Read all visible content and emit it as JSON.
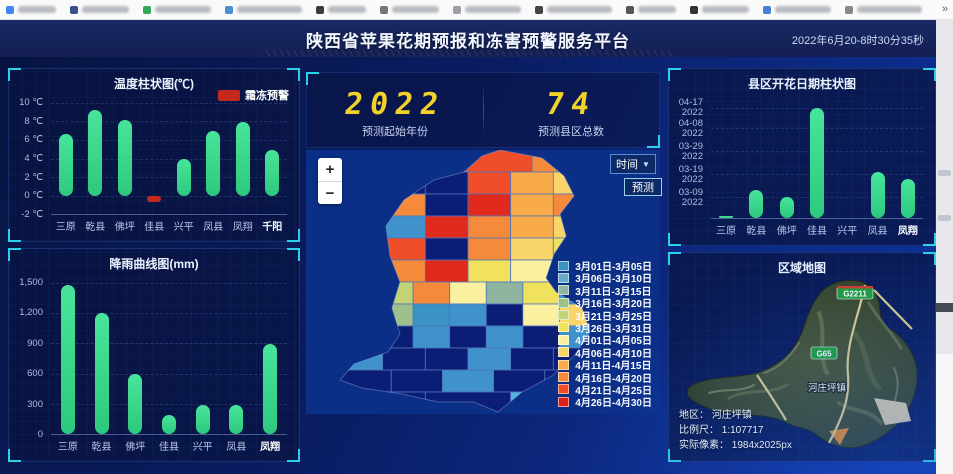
{
  "browser": {
    "overflow_chevron": "»",
    "bookmarks": [
      {
        "color": "#4285f4"
      },
      {
        "color": "#38508c"
      },
      {
        "color": "#34a853"
      },
      {
        "color": "#4a90d9"
      },
      {
        "color": "#3b3b3b"
      },
      {
        "color": "#777777"
      },
      {
        "color": "#9aa0a6"
      },
      {
        "color": "#444444"
      },
      {
        "color": "#555555"
      },
      {
        "color": "#333333"
      },
      {
        "color": "#4a7fd6"
      },
      {
        "color": "#888888"
      }
    ]
  },
  "header": {
    "title": "陕西省苹果花期预报和冻害预警服务平台",
    "timestamp": "2022年6月20-8时30分35秒"
  },
  "stats": {
    "year_value": "2022",
    "year_label": "预测起始年份",
    "county_value": "74",
    "county_label": "预测县区总数"
  },
  "map_panel": {
    "zoom_in": "+",
    "zoom_out": "−",
    "time_label": "时间",
    "predict_label": "预测",
    "legend": [
      {
        "label": "3月01日-3月05日",
        "color": "#3a93c4"
      },
      {
        "label": "3月06日-3月10日",
        "color": "#68aac9"
      },
      {
        "label": "3月11日-3月15日",
        "color": "#8fb49f"
      },
      {
        "label": "3月16日-3月20日",
        "color": "#9ec08a"
      },
      {
        "label": "3月21日-3月25日",
        "color": "#c2d275"
      },
      {
        "label": "3月26日-3月31日",
        "color": "#f0e25c"
      },
      {
        "label": "4月01日-4月05日",
        "color": "#faf0a0"
      },
      {
        "label": "4月06日-4月10日",
        "color": "#f9d468"
      },
      {
        "label": "4月11日-4月15日",
        "color": "#f9ab49"
      },
      {
        "label": "4月16日-4月20日",
        "color": "#f58b3a"
      },
      {
        "label": "4月21日-4月25日",
        "color": "#ef4e28"
      },
      {
        "label": "4月26日-4月30日",
        "color": "#dc1f1b"
      }
    ],
    "palette": {
      "N": "#0b1d74",
      "R": "#ef4e28",
      "DR": "#e02a1e",
      "O": "#f58b3a",
      "LO": "#f9ab49",
      "PE": "#f9d468",
      "Y": "#f0e25c",
      "PY": "#faf0a0",
      "G": "#9ec08a",
      "LG": "#c2d275",
      "GG": "#8fb49f",
      "MB": "#3f92cc",
      "LB": "#52b4dc",
      "TB": "#3a93c4"
    },
    "rows": [
      [
        "N",
        "R",
        "R",
        "O"
      ],
      [
        "O",
        "N",
        "N",
        "R",
        "LO",
        "PE"
      ],
      [
        "O",
        "O",
        "N",
        "DR",
        "LO",
        "O"
      ],
      [
        "N",
        "MB",
        "DR",
        "O",
        "LO",
        "PE"
      ],
      [
        "O",
        "R",
        "N",
        "O",
        "PE",
        "Y"
      ],
      [
        "LO",
        "O",
        "DR",
        "Y",
        "PY",
        "G"
      ],
      [
        "PY",
        "LG",
        "O",
        "PY",
        "GG",
        "Y",
        "MB"
      ],
      [
        "MB",
        "G",
        "TB",
        "MB",
        "N",
        "PY",
        "PE"
      ],
      [
        "G",
        "N",
        "MB",
        "N",
        "MB",
        "N",
        "MB"
      ],
      [
        "MB",
        "N",
        "N",
        "MB",
        "N",
        "N"
      ],
      [
        "N",
        "N",
        "MB",
        "N",
        "N"
      ],
      [
        "N",
        "N",
        "LB"
      ]
    ]
  },
  "region_panel": {
    "title": "区域地图",
    "badge_top": "G2211",
    "badge_mid": "G65",
    "place": "河庄坪镇",
    "info_area": "地区： 河庄坪镇",
    "info_scale": "比例尺： 1:107717",
    "info_pixels": "实际像素： 1984x2025px"
  },
  "chart_data": [
    {
      "id": "temperature",
      "type": "bar",
      "title": "温度柱状图(℃)",
      "legend": {
        "label": "霜冻预警",
        "color": "#c5281c"
      },
      "categories": [
        "三原",
        "乾县",
        "佛坪",
        "佳县",
        "兴平",
        "凤县",
        "凤翔",
        "千阳"
      ],
      "values": [
        6.6,
        9.3,
        8.2,
        -0.7,
        4.0,
        7.0,
        8.0,
        4.9
      ],
      "warn_indices": [
        3
      ],
      "warn_color": "#c5281c",
      "bar_color": "#35d98c",
      "ylim": [
        -2,
        10
      ],
      "ticks": [
        {
          "value": 10,
          "label": "10 ℃"
        },
        {
          "value": 8,
          "label": "8 ℃"
        },
        {
          "value": 6,
          "label": "6 ℃"
        },
        {
          "value": 4,
          "label": "4 ℃"
        },
        {
          "value": 2,
          "label": "2 ℃"
        },
        {
          "value": 0,
          "label": "0 ℃"
        },
        {
          "value": -2,
          "label": "-2 ℃"
        }
      ],
      "highlight_last": true,
      "grid": true,
      "legend_position": "top-right"
    },
    {
      "id": "rainfall",
      "type": "bar",
      "title": "降雨曲线图(mm)",
      "categories": [
        "三原",
        "乾县",
        "佛坪",
        "佳县",
        "兴平",
        "凤县",
        "凤翔"
      ],
      "values": [
        1480,
        1200,
        600,
        190,
        290,
        290,
        890
      ],
      "bar_color": "#35d98c",
      "ylim": [
        0,
        1500
      ],
      "ticks": [
        {
          "value": 1500,
          "label": "1,500"
        },
        {
          "value": 1200,
          "label": "1,200"
        },
        {
          "value": 900,
          "label": "900"
        },
        {
          "value": 600,
          "label": "600"
        },
        {
          "value": 300,
          "label": "300"
        },
        {
          "value": 0,
          "label": "0"
        }
      ],
      "highlight_last": true,
      "grid": true
    },
    {
      "id": "flowering",
      "type": "bar",
      "title": "县区开花日期柱状图",
      "categories": [
        "三原",
        "乾县",
        "佛坪",
        "佳县",
        "兴平",
        "凤县",
        "凤翔"
      ],
      "values": [
        1,
        12,
        9,
        48,
        0,
        20,
        17
      ],
      "value_unit": "days-from-02-28",
      "bar_color": "#35d98c",
      "ylim": [
        0,
        50
      ],
      "ticks": [
        {
          "value": 48,
          "label": "04-17",
          "label2": "2022"
        },
        {
          "value": 39,
          "label": "04-08",
          "label2": "2022"
        },
        {
          "value": 29,
          "label": "03-29",
          "label2": "2022"
        },
        {
          "value": 19,
          "label": "03-19",
          "label2": "2022"
        },
        {
          "value": 9,
          "label": "03-09",
          "label2": "2022"
        }
      ],
      "highlight_last": true,
      "grid": true
    }
  ]
}
